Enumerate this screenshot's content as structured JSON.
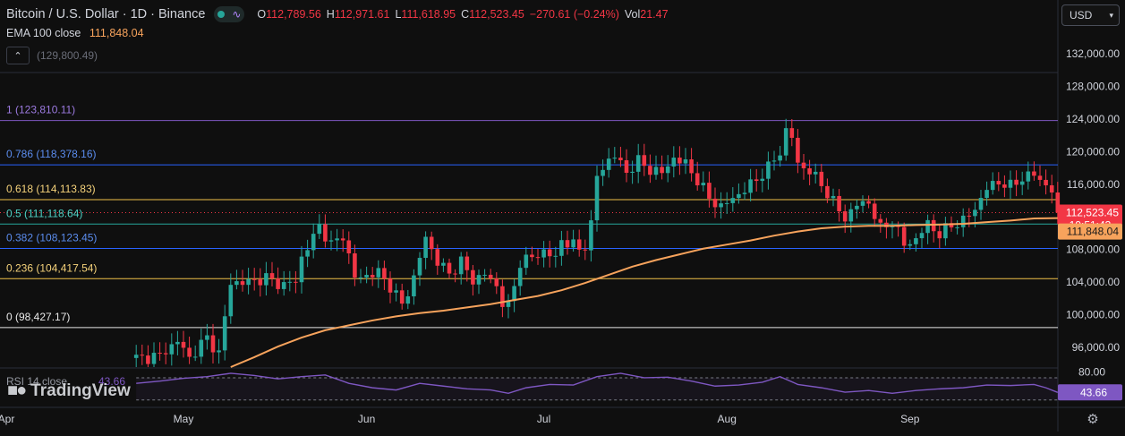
{
  "header": {
    "title": "Bitcoin / U.S. Dollar · 1D · Binance",
    "ohlc": [
      {
        "k": "O",
        "v": "112,789.56"
      },
      {
        "k": "H",
        "v": "112,971.61"
      },
      {
        "k": "L",
        "v": "111,618.95"
      },
      {
        "k": "C",
        "v": "112,523.45"
      }
    ],
    "change": "−270.61 (−0.24%)",
    "vol_label": "Vol",
    "vol_value": "21.47",
    "ema_label": "EMA 100 close",
    "ema_value": "111,848.04",
    "hidden_value": "(129,800.49)",
    "collapse_icon": "chevron-up-icon"
  },
  "toolbar": {
    "currency": "USD",
    "settings_icon": "gear-icon"
  },
  "logo_text": "TradingView",
  "colors": {
    "up": "#26a69a",
    "down": "#f23645",
    "ema": "#f7a35c",
    "rsi": "#7e57c2",
    "background": "#0f0f0f"
  },
  "chart_data": {
    "type": "candlestick",
    "ylim": [
      94500,
      134000
    ],
    "y_ticks": [
      {
        "value": 132000,
        "label": "132,000.00"
      },
      {
        "value": 128000,
        "label": "128,000.00"
      },
      {
        "value": 124000,
        "label": "124,000.00"
      },
      {
        "value": 120000,
        "label": "120,000.00"
      },
      {
        "value": 116000,
        "label": "116,000.00"
      },
      {
        "value": 112000,
        "label": "112,000.00"
      },
      {
        "value": 108000,
        "label": "108,000.00"
      },
      {
        "value": 104000,
        "label": "104,000.00"
      },
      {
        "value": 100000,
        "label": "100,000.00"
      },
      {
        "value": 96000,
        "label": "96,000.00"
      }
    ],
    "x_labels": [
      {
        "day": 0,
        "label": "Apr"
      },
      {
        "day": 30,
        "label": "May"
      },
      {
        "day": 61,
        "label": "Jun"
      },
      {
        "day": 91,
        "label": "Jul"
      },
      {
        "day": 122,
        "label": "Aug"
      },
      {
        "day": 153,
        "label": "Sep"
      }
    ],
    "x_range_days": [
      0,
      184
    ],
    "fib_levels": [
      {
        "label": "1 (123,810.11)",
        "value": 123810.11,
        "color": "#7e57c2"
      },
      {
        "label": "0.786 (118,378.16)",
        "value": 118378.16,
        "color": "#2962ff"
      },
      {
        "label": "0.618 (114,113.83)",
        "value": 114113.83,
        "color": "#f0c048"
      },
      {
        "label": "0.5 (111,118.64)",
        "value": 111118.64,
        "color": "#26a69a"
      },
      {
        "label": "0.382 (108,123.45)",
        "value": 108123.45,
        "color": "#2962ff"
      },
      {
        "label": "0.236 (104,417.54)",
        "value": 104417.54,
        "color": "#f0c048"
      },
      {
        "label": "0 (98,427.17)",
        "value": 98427.17,
        "color": "#e8e8e8"
      }
    ],
    "price_label": {
      "value": 112523.45,
      "text": "112,523.45",
      "countdown": "19:51:43"
    },
    "ema_label": {
      "value": 111848.04,
      "text": "111,848.04"
    },
    "anchors": [
      [
        22,
        94600
      ],
      [
        26,
        95000
      ],
      [
        29,
        96800
      ],
      [
        31,
        94700
      ],
      [
        34,
        97200
      ],
      [
        36,
        95200
      ],
      [
        38,
        104000
      ],
      [
        40,
        103900
      ],
      [
        44,
        104500
      ],
      [
        47,
        103600
      ],
      [
        49,
        104200
      ],
      [
        50,
        107000
      ],
      [
        52,
        109500
      ],
      [
        53,
        111000
      ],
      [
        55,
        108500
      ],
      [
        57,
        109800
      ],
      [
        59,
        104500
      ],
      [
        61,
        104800
      ],
      [
        63,
        105200
      ],
      [
        65,
        103500
      ],
      [
        67,
        101200
      ],
      [
        69,
        104500
      ],
      [
        71,
        109500
      ],
      [
        73,
        106500
      ],
      [
        75,
        105000
      ],
      [
        77,
        106500
      ],
      [
        79,
        104200
      ],
      [
        81,
        105000
      ],
      [
        83,
        103500
      ],
      [
        84,
        101500
      ],
      [
        85,
        101000
      ],
      [
        86,
        103500
      ],
      [
        87,
        106500
      ],
      [
        89,
        107000
      ],
      [
        91,
        107800
      ],
      [
        93,
        106900
      ],
      [
        94,
        109200
      ],
      [
        96,
        108500
      ],
      [
        97,
        108000
      ],
      [
        98,
        108600
      ],
      [
        99,
        111000
      ],
      [
        100,
        117000
      ],
      [
        101,
        118000
      ],
      [
        102,
        119000
      ],
      [
        103,
        119500
      ],
      [
        105,
        117500
      ],
      [
        107,
        118800
      ],
      [
        109,
        117800
      ],
      [
        111,
        117400
      ],
      [
        113,
        119200
      ],
      [
        115,
        118500
      ],
      [
        117,
        116500
      ],
      [
        119,
        114300
      ],
      [
        121,
        113200
      ],
      [
        123,
        114300
      ],
      [
        125,
        115300
      ],
      [
        127,
        116600
      ],
      [
        129,
        118000
      ],
      [
        131,
        120000
      ],
      [
        132,
        122500
      ],
      [
        133,
        121800
      ],
      [
        134,
        118500
      ],
      [
        136,
        117600
      ],
      [
        138,
        116000
      ],
      [
        140,
        113800
      ],
      [
        142,
        111800
      ],
      [
        144,
        113500
      ],
      [
        146,
        113800
      ],
      [
        148,
        110500
      ],
      [
        150,
        111500
      ],
      [
        152,
        108600
      ],
      [
        154,
        109200
      ],
      [
        156,
        111200
      ],
      [
        158,
        109800
      ],
      [
        160,
        111000
      ],
      [
        162,
        111500
      ],
      [
        164,
        113000
      ],
      [
        166,
        115500
      ],
      [
        168,
        116300
      ],
      [
        170,
        115700
      ],
      [
        172,
        116800
      ],
      [
        174,
        117200
      ],
      [
        176,
        115900
      ],
      [
        177,
        115200
      ],
      [
        178,
        112523.45
      ]
    ],
    "ema_points": [
      [
        38,
        93500
      ],
      [
        42,
        94800
      ],
      [
        46,
        96100
      ],
      [
        50,
        97200
      ],
      [
        54,
        98100
      ],
      [
        58,
        98700
      ],
      [
        62,
        99300
      ],
      [
        66,
        99800
      ],
      [
        70,
        100200
      ],
      [
        74,
        100500
      ],
      [
        78,
        100900
      ],
      [
        82,
        101300
      ],
      [
        86,
        101800
      ],
      [
        90,
        102300
      ],
      [
        94,
        103000
      ],
      [
        98,
        103900
      ],
      [
        102,
        104900
      ],
      [
        106,
        105900
      ],
      [
        110,
        106700
      ],
      [
        114,
        107400
      ],
      [
        118,
        108100
      ],
      [
        122,
        108600
      ],
      [
        126,
        109100
      ],
      [
        130,
        109700
      ],
      [
        134,
        110200
      ],
      [
        138,
        110600
      ],
      [
        142,
        110800
      ],
      [
        146,
        110900
      ],
      [
        150,
        110900
      ],
      [
        154,
        111000
      ],
      [
        158,
        111050
      ],
      [
        162,
        111150
      ],
      [
        166,
        111350
      ],
      [
        170,
        111550
      ],
      [
        174,
        111800
      ],
      [
        178,
        111848.04
      ]
    ],
    "rsi": {
      "label": "RSI 14 close",
      "value_text": "43.66",
      "value": 43.66,
      "ylim": [
        20,
        86
      ],
      "upper_tick": {
        "value": 80,
        "label": "80.00"
      },
      "bands": [
        70,
        30
      ],
      "points": [
        [
          22,
          60
        ],
        [
          26,
          64
        ],
        [
          30,
          69
        ],
        [
          34,
          72
        ],
        [
          38,
          78
        ],
        [
          42,
          74
        ],
        [
          46,
          68
        ],
        [
          50,
          72
        ],
        [
          54,
          75
        ],
        [
          58,
          60
        ],
        [
          62,
          52
        ],
        [
          66,
          48
        ],
        [
          70,
          60
        ],
        [
          74,
          55
        ],
        [
          78,
          50
        ],
        [
          82,
          48
        ],
        [
          85,
          42
        ],
        [
          88,
          52
        ],
        [
          92,
          58
        ],
        [
          96,
          57
        ],
        [
          100,
          72
        ],
        [
          104,
          78
        ],
        [
          108,
          70
        ],
        [
          112,
          71
        ],
        [
          116,
          64
        ],
        [
          120,
          55
        ],
        [
          124,
          57
        ],
        [
          128,
          62
        ],
        [
          131,
          72
        ],
        [
          134,
          58
        ],
        [
          138,
          52
        ],
        [
          142,
          44
        ],
        [
          146,
          47
        ],
        [
          150,
          42
        ],
        [
          154,
          47
        ],
        [
          158,
          50
        ],
        [
          162,
          52
        ],
        [
          166,
          57
        ],
        [
          170,
          56
        ],
        [
          174,
          58
        ],
        [
          176,
          52
        ],
        [
          178,
          43.66
        ]
      ]
    }
  }
}
